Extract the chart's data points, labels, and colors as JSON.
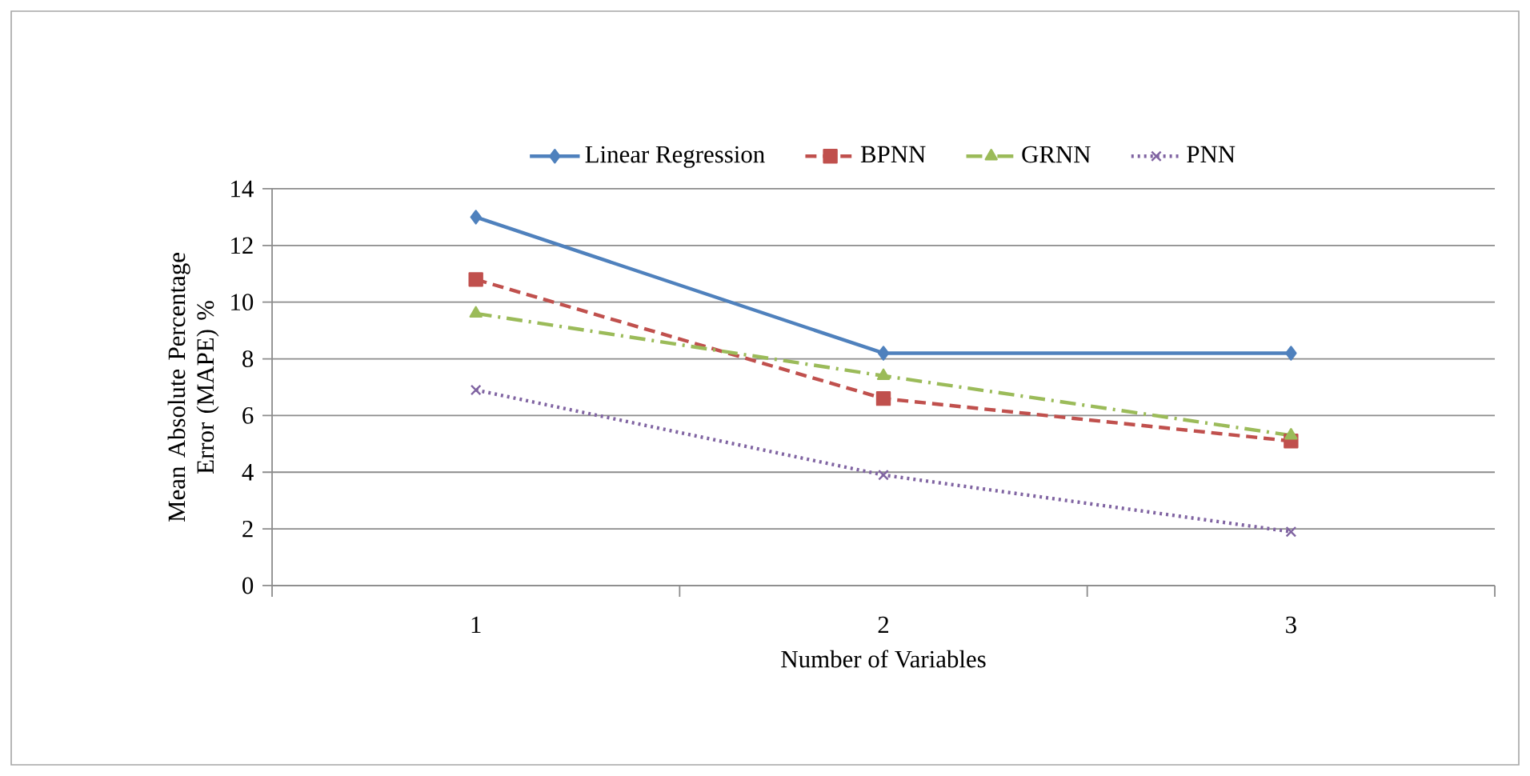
{
  "chart_data": {
    "type": "line",
    "xlabel": "Number of Variables",
    "ylabel": "Mean Absolute Percentage Error (MAPE) %",
    "categories": [
      "1",
      "2",
      "3"
    ],
    "series": [
      {
        "name": "Linear Regression",
        "color": "#4f81bd",
        "values": [
          13,
          8.2,
          8.2
        ],
        "marker": "diamond",
        "line_style": "solid"
      },
      {
        "name": "BPNN",
        "color": "#c0504d",
        "values": [
          10.8,
          6.6,
          5.1
        ],
        "marker": "square",
        "line_style": "dashed"
      },
      {
        "name": "GRNN",
        "color": "#9bbb59",
        "values": [
          9.6,
          7.4,
          5.3
        ],
        "marker": "triangle",
        "line_style": "dashdot"
      },
      {
        "name": "PNN",
        "color": "#8064a2",
        "values": [
          6.9,
          3.9,
          1.9
        ],
        "marker": "cross",
        "line_style": "dotted"
      }
    ],
    "ylim": [
      0,
      14
    ],
    "yticks": [
      0,
      2,
      4,
      6,
      8,
      10,
      12,
      14
    ],
    "grid": "y",
    "legend": "top"
  }
}
